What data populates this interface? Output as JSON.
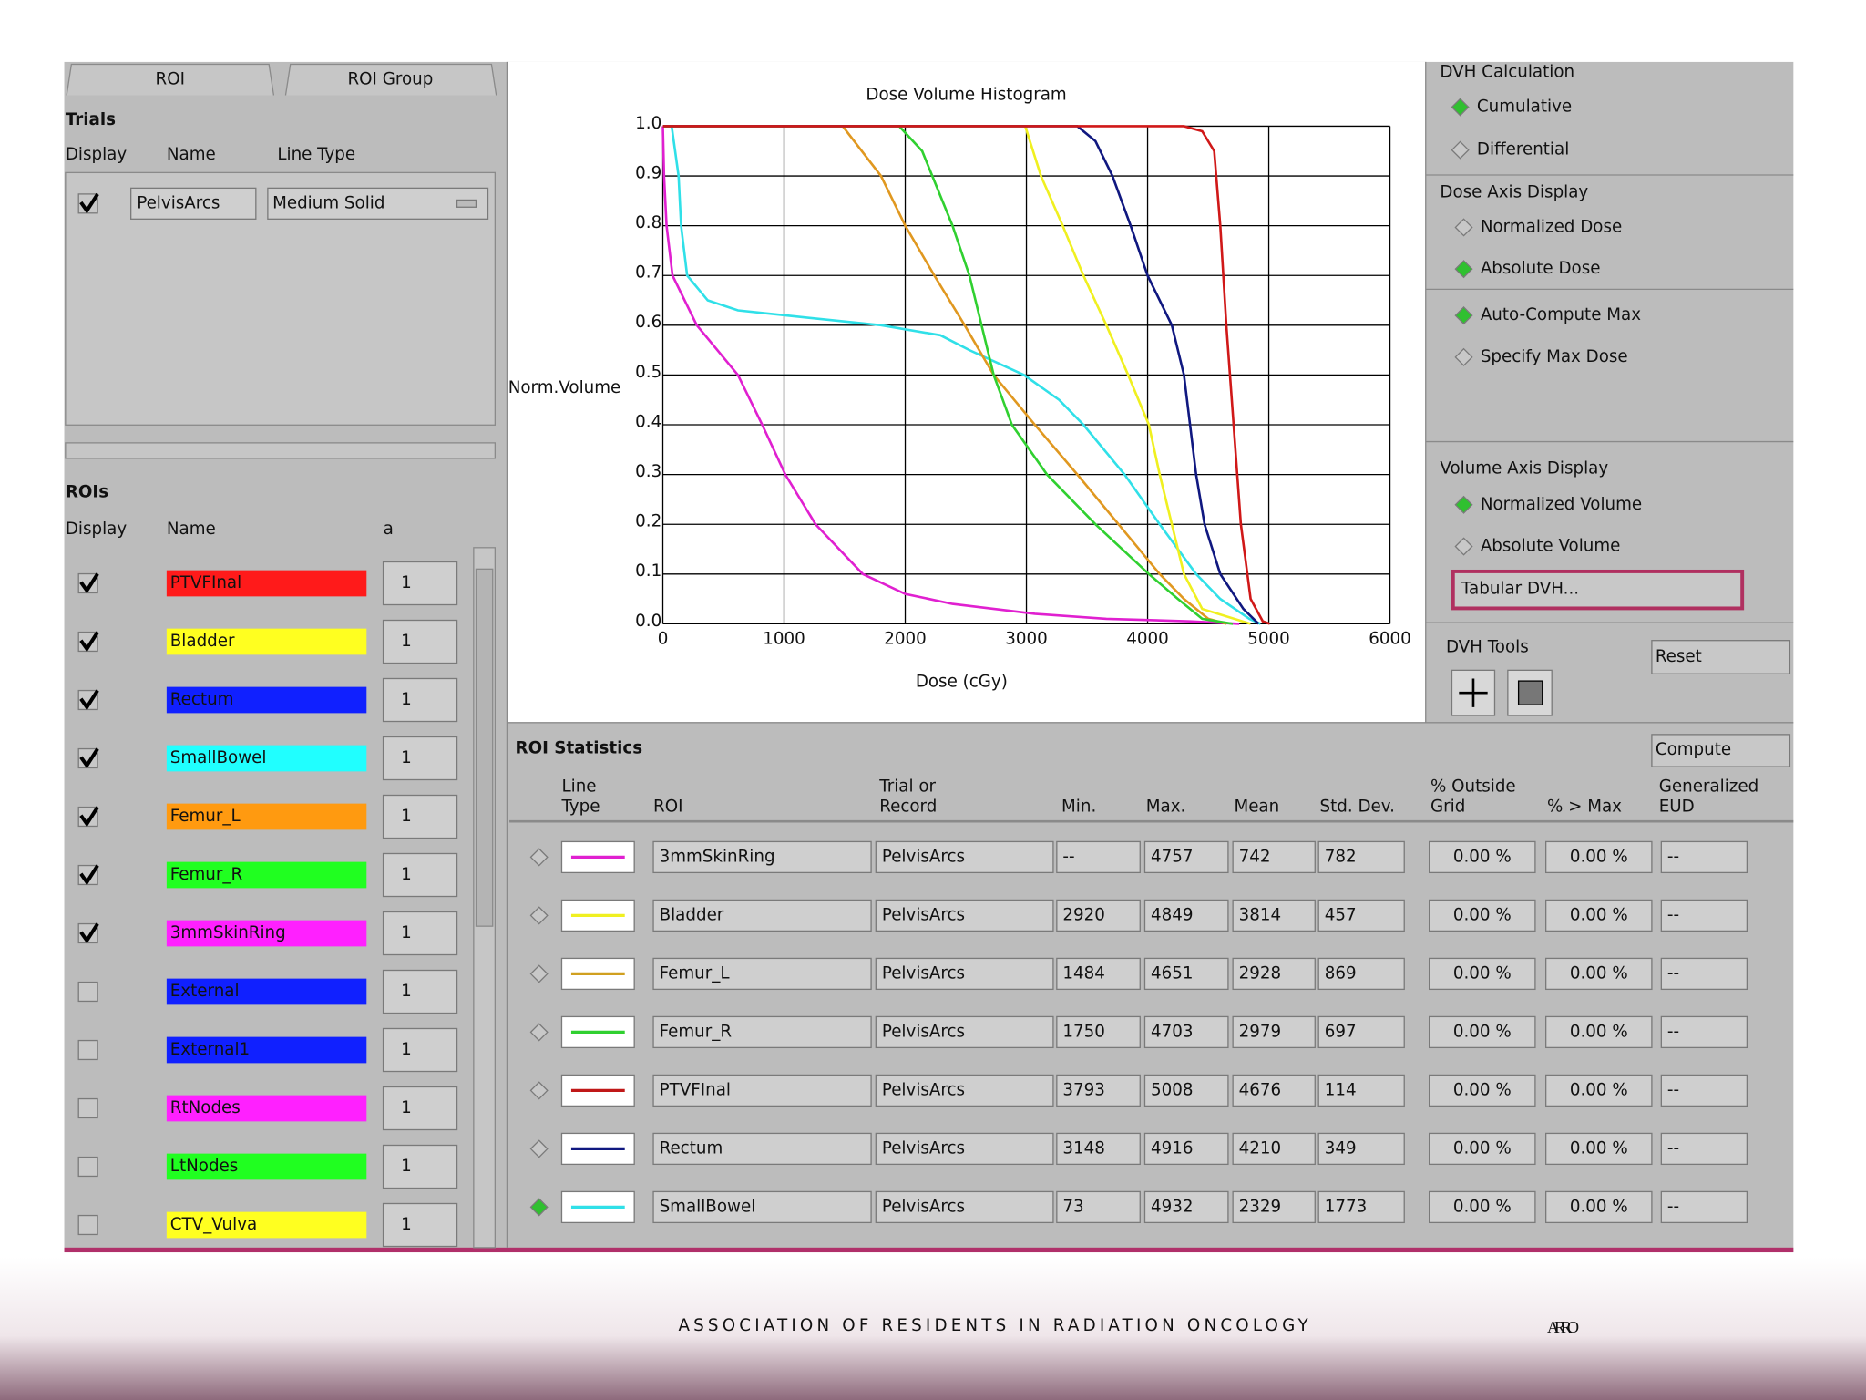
{
  "tabs": [
    "ROI",
    "ROI Group"
  ],
  "trials": {
    "title": "Trials",
    "headers": [
      "Display",
      "Name",
      "Line Type"
    ],
    "rows": [
      {
        "checked": true,
        "name": "PelvisArcs",
        "line_type": "Medium Solid"
      }
    ]
  },
  "rois": {
    "title": "ROIs",
    "headers": [
      "Display",
      "Name",
      "a"
    ],
    "rows": [
      {
        "checked": true,
        "name": "PTVFInal",
        "color": "#ff1a1a",
        "text_color": "#ffffff",
        "a": "1"
      },
      {
        "checked": true,
        "name": "Bladder",
        "color": "#ffff20",
        "text_color": "#000000",
        "a": "1"
      },
      {
        "checked": true,
        "name": "Rectum",
        "color": "#1020ff",
        "text_color": "#ffffff",
        "a": "1"
      },
      {
        "checked": true,
        "name": "SmallBowel",
        "color": "#20ffff",
        "text_color": "#000000",
        "a": "1"
      },
      {
        "checked": true,
        "name": "Femur_L",
        "color": "#ff9a10",
        "text_color": "#ffffff",
        "a": "1"
      },
      {
        "checked": true,
        "name": "Femur_R",
        "color": "#20ff20",
        "text_color": "#000000",
        "a": "1"
      },
      {
        "checked": true,
        "name": "3mmSkinRing",
        "color": "#ff20ff",
        "text_color": "#ffffff",
        "a": "1"
      },
      {
        "checked": false,
        "name": "External",
        "color": "#1020ff",
        "text_color": "#ffffff",
        "a": "1"
      },
      {
        "checked": false,
        "name": "External1",
        "color": "#1020ff",
        "text_color": "#ffffff",
        "a": "1"
      },
      {
        "checked": false,
        "name": "RtNodes",
        "color": "#ff20ff",
        "text_color": "#ffffff",
        "a": "1"
      },
      {
        "checked": false,
        "name": "LtNodes",
        "color": "#20ff20",
        "text_color": "#000000",
        "a": "1"
      },
      {
        "checked": false,
        "name": "CTV_Vulva",
        "color": "#ffff20",
        "text_color": "#000000",
        "a": "1"
      }
    ]
  },
  "chart_data": {
    "type": "line",
    "title": "Dose Volume Histogram",
    "x_label": "Dose (cGy)",
    "y_label": "Norm.Volume",
    "xlim": [
      0,
      6000
    ],
    "ylim": [
      0,
      1
    ],
    "xticks": [
      0,
      1000,
      2000,
      3000,
      4000,
      5000,
      6000
    ],
    "yticks": [
      {
        "value": 0,
        "label": "0.0"
      },
      0.1,
      0.2,
      0.3,
      0.4,
      0.5,
      0.6,
      0.7,
      0.8,
      0.9,
      {
        "value": 1,
        "label": "1.0"
      }
    ],
    "grid": true,
    "series": [
      {
        "color": "#e020d0",
        "x": [
          0,
          10,
          30,
          80,
          280,
          620,
          820,
          1010,
          1260,
          1650,
          2000,
          2390,
          3070,
          3660,
          4350,
          4757
        ],
        "values": [
          1,
          0.9,
          0.8,
          0.7,
          0.6,
          0.5,
          0.4,
          0.3,
          0.2,
          0.1,
          0.06,
          0.04,
          0.02,
          0.01,
          0.005,
          0
        ]
      },
      {
        "color": "#30e0e8",
        "x": [
          0,
          73,
          130,
          150,
          200,
          370,
          620,
          1000,
          1800,
          2290,
          2530,
          2980,
          3270,
          3470,
          3810,
          4100,
          4400,
          4600,
          4840,
          4932
        ],
        "values": [
          1,
          1,
          0.9,
          0.8,
          0.7,
          0.65,
          0.63,
          0.62,
          0.6,
          0.58,
          0.55,
          0.5,
          0.45,
          0.4,
          0.3,
          0.2,
          0.1,
          0.05,
          0.01,
          0
        ]
      },
      {
        "color": "#e09820",
        "x": [
          0,
          1484,
          1800,
          2000,
          2240,
          2490,
          2730,
          3070,
          3420,
          3760,
          4100,
          4300,
          4500,
          4651
        ],
        "values": [
          1,
          1,
          0.9,
          0.8,
          0.7,
          0.6,
          0.5,
          0.4,
          0.3,
          0.2,
          0.1,
          0.05,
          0.01,
          0
        ]
      },
      {
        "color": "#30d030",
        "x": [
          0,
          1950,
          2140,
          2390,
          2530,
          2630,
          2730,
          2880,
          3170,
          3570,
          4010,
          4250,
          4450,
          4703
        ],
        "values": [
          1,
          1,
          0.95,
          0.8,
          0.7,
          0.6,
          0.5,
          0.4,
          0.3,
          0.2,
          0.1,
          0.05,
          0.01,
          0
        ]
      },
      {
        "color": "#f0f020",
        "x": [
          0,
          2990,
          3120,
          3300,
          3470,
          3660,
          3840,
          4010,
          4100,
          4200,
          4300,
          4450,
          4849
        ],
        "values": [
          1,
          1,
          0.9,
          0.8,
          0.7,
          0.6,
          0.5,
          0.4,
          0.3,
          0.2,
          0.1,
          0.03,
          0
        ]
      },
      {
        "color": "#101880",
        "x": [
          0,
          3420,
          3570,
          3710,
          3860,
          4000,
          4200,
          4300,
          4350,
          4400,
          4470,
          4600,
          4790,
          4916
        ],
        "values": [
          1,
          1,
          0.97,
          0.9,
          0.8,
          0.7,
          0.6,
          0.5,
          0.4,
          0.3,
          0.2,
          0.1,
          0.03,
          0
        ]
      },
      {
        "color": "#d01818",
        "x": [
          0,
          4300,
          4450,
          4550,
          4600,
          4650,
          4710,
          4770,
          4850,
          4950,
          5008
        ],
        "values": [
          1,
          1,
          0.99,
          0.95,
          0.8,
          0.6,
          0.4,
          0.2,
          0.05,
          0.005,
          0
        ]
      }
    ]
  },
  "right_panel": {
    "sections": [
      {
        "title": "DVH Calculation",
        "options": [
          {
            "label": "Cumulative",
            "selected": true
          },
          {
            "label": "Differential",
            "selected": false
          }
        ]
      },
      {
        "title": "Dose Axis Display",
        "options": [
          {
            "label": "Normalized Dose",
            "selected": false
          },
          {
            "label": "Absolute Dose",
            "selected": true
          }
        ]
      },
      {
        "options": [
          {
            "label": "Auto-Compute Max",
            "selected": true
          },
          {
            "label": "Specify Max Dose",
            "selected": false
          }
        ]
      },
      {
        "title": "Volume Axis Display",
        "options": [
          {
            "label": "Normalized Volume",
            "selected": true
          },
          {
            "label": "Absolute Volume",
            "selected": false
          }
        ],
        "button": "Tabular DVH..."
      }
    ],
    "tools": {
      "title": "DVH Tools",
      "button": "Reset"
    }
  },
  "stats": {
    "title": "ROI Statistics",
    "button": "Compute",
    "headers": [
      [
        "Line",
        "Type"
      ],
      [
        "ROI"
      ],
      [
        "Trial or",
        "Record"
      ],
      [
        "Min."
      ],
      [
        "Max."
      ],
      [
        "Mean"
      ],
      [
        "Std. Dev."
      ],
      [
        "% Outside",
        "Grid"
      ],
      [
        "% > Max"
      ],
      [
        "Generalized",
        "EUD"
      ]
    ],
    "rows": [
      {
        "selected": false,
        "color": "#e020d0",
        "roi": "3mmSkinRing",
        "trial": "PelvisArcs",
        "min": "--",
        "max": "4757",
        "mean": "742",
        "std": "782",
        "outside": "0.00 %",
        "over_max": "0.00 %",
        "eud": "--"
      },
      {
        "selected": false,
        "color": "#f0f020",
        "roi": "Bladder",
        "trial": "PelvisArcs",
        "min": "2920",
        "max": "4849",
        "mean": "3814",
        "std": "457",
        "outside": "0.00 %",
        "over_max": "0.00 %",
        "eud": "--"
      },
      {
        "selected": false,
        "color": "#d0a020",
        "roi": "Femur_L",
        "trial": "PelvisArcs",
        "min": "1484",
        "max": "4651",
        "mean": "2928",
        "std": "869",
        "outside": "0.00 %",
        "over_max": "0.00 %",
        "eud": "--"
      },
      {
        "selected": false,
        "color": "#30d030",
        "roi": "Femur_R",
        "trial": "PelvisArcs",
        "min": "1750",
        "max": "4703",
        "mean": "2979",
        "std": "697",
        "outside": "0.00 %",
        "over_max": "0.00 %",
        "eud": "--"
      },
      {
        "selected": false,
        "color": "#c01818",
        "roi": "PTVFInal",
        "trial": "PelvisArcs",
        "min": "3793",
        "max": "5008",
        "mean": "4676",
        "std": "114",
        "outside": "0.00 %",
        "over_max": "0.00 %",
        "eud": "--"
      },
      {
        "selected": false,
        "color": "#101880",
        "roi": "Rectum",
        "trial": "PelvisArcs",
        "min": "3148",
        "max": "4916",
        "mean": "4210",
        "std": "349",
        "outside": "0.00 %",
        "over_max": "0.00 %",
        "eud": "--"
      },
      {
        "selected": true,
        "color": "#30e0e8",
        "roi": "SmallBowel",
        "trial": "PelvisArcs",
        "min": "73",
        "max": "4932",
        "mean": "2329",
        "std": "1773",
        "outside": "0.00 %",
        "over_max": "0.00 %",
        "eud": "--"
      }
    ]
  },
  "footer": {
    "text": "ASSOCIATION OF RESIDENTS IN RADIATION ONCOLOGY",
    "logo": "ARRO"
  }
}
